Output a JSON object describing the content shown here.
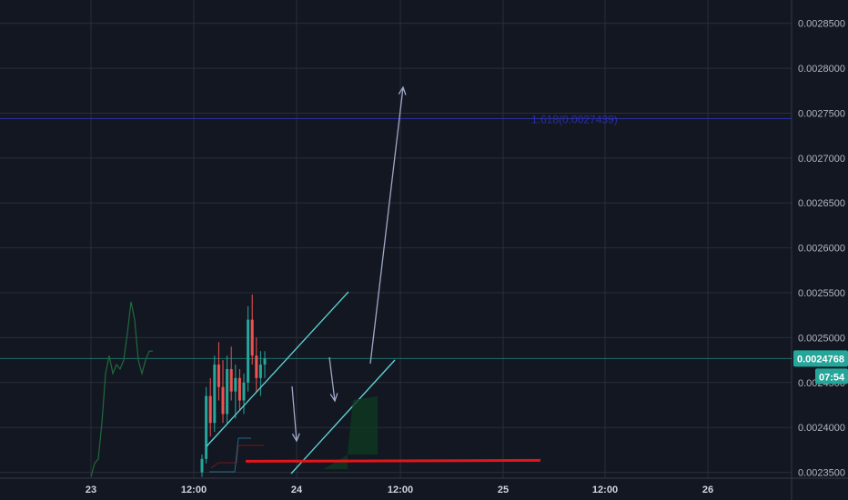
{
  "chart_data": {
    "type": "candlestick",
    "ylim": [
      0.0023435,
      0.002876
    ],
    "y_ticks": [
      "0.0023500",
      "0.0024000",
      "0.0024500",
      "0.0025000",
      "0.0025500",
      "0.0026000",
      "0.0026500",
      "0.0027000",
      "0.0027500",
      "0.0028000",
      "0.0028500"
    ],
    "x_ticks": [
      "23",
      "12:00",
      "24",
      "12:00",
      "25",
      "12:00",
      "26"
    ],
    "last_price": "0.0024768",
    "countdown": "07:54",
    "fib_label": "1.618(0.0027439)",
    "fib_level": 0.0027439,
    "support_level": 0.0023623,
    "grid": true,
    "colors": {
      "background": "#131722",
      "grid": "#2a2e39",
      "up": "#26a69a",
      "down": "#ef5350",
      "fib": "#2a2e9f",
      "support": "#e0161b",
      "price_tag": "#26a69a",
      "channel": "#5fd8d6",
      "arrow": "#a0a8c8",
      "indicator_line": "#1f6b3a"
    },
    "candles": [
      {
        "o": 0.00235,
        "h": 0.00237,
        "l": 0.002345,
        "c": 0.002365
      },
      {
        "o": 0.002365,
        "h": 0.002445,
        "l": 0.00236,
        "c": 0.002435
      },
      {
        "o": 0.002435,
        "h": 0.002455,
        "l": 0.00239,
        "c": 0.002405
      },
      {
        "o": 0.002405,
        "h": 0.00248,
        "l": 0.002395,
        "c": 0.00247
      },
      {
        "o": 0.00247,
        "h": 0.002495,
        "l": 0.00243,
        "c": 0.002445
      },
      {
        "o": 0.002445,
        "h": 0.002475,
        "l": 0.002405,
        "c": 0.002415
      },
      {
        "o": 0.002415,
        "h": 0.00248,
        "l": 0.002405,
        "c": 0.002465
      },
      {
        "o": 0.002465,
        "h": 0.00249,
        "l": 0.00243,
        "c": 0.00244
      },
      {
        "o": 0.00244,
        "h": 0.00247,
        "l": 0.00241,
        "c": 0.002455
      },
      {
        "o": 0.002455,
        "h": 0.002465,
        "l": 0.00242,
        "c": 0.00243
      },
      {
        "o": 0.00243,
        "h": 0.00246,
        "l": 0.002415,
        "c": 0.00245
      },
      {
        "o": 0.00245,
        "h": 0.002535,
        "l": 0.00244,
        "c": 0.00252
      },
      {
        "o": 0.00252,
        "h": 0.002548,
        "l": 0.00247,
        "c": 0.00248
      },
      {
        "o": 0.00248,
        "h": 0.0025,
        "l": 0.00244,
        "c": 0.002455
      },
      {
        "o": 0.002455,
        "h": 0.002485,
        "l": 0.002435,
        "c": 0.00247
      },
      {
        "o": 0.00247,
        "h": 0.002485,
        "l": 0.002455,
        "c": 0.0024768
      }
    ],
    "indicator_series": [
      [
        0.002345,
        0.00236,
        0.002365,
        0.002405,
        0.00246,
        0.00248,
        0.00246,
        0.00247,
        0.002465,
        0.002475,
        0.002505,
        0.00254,
        0.00252,
        0.002475,
        0.00246,
        0.002475,
        0.002485,
        0.002485
      ]
    ]
  }
}
